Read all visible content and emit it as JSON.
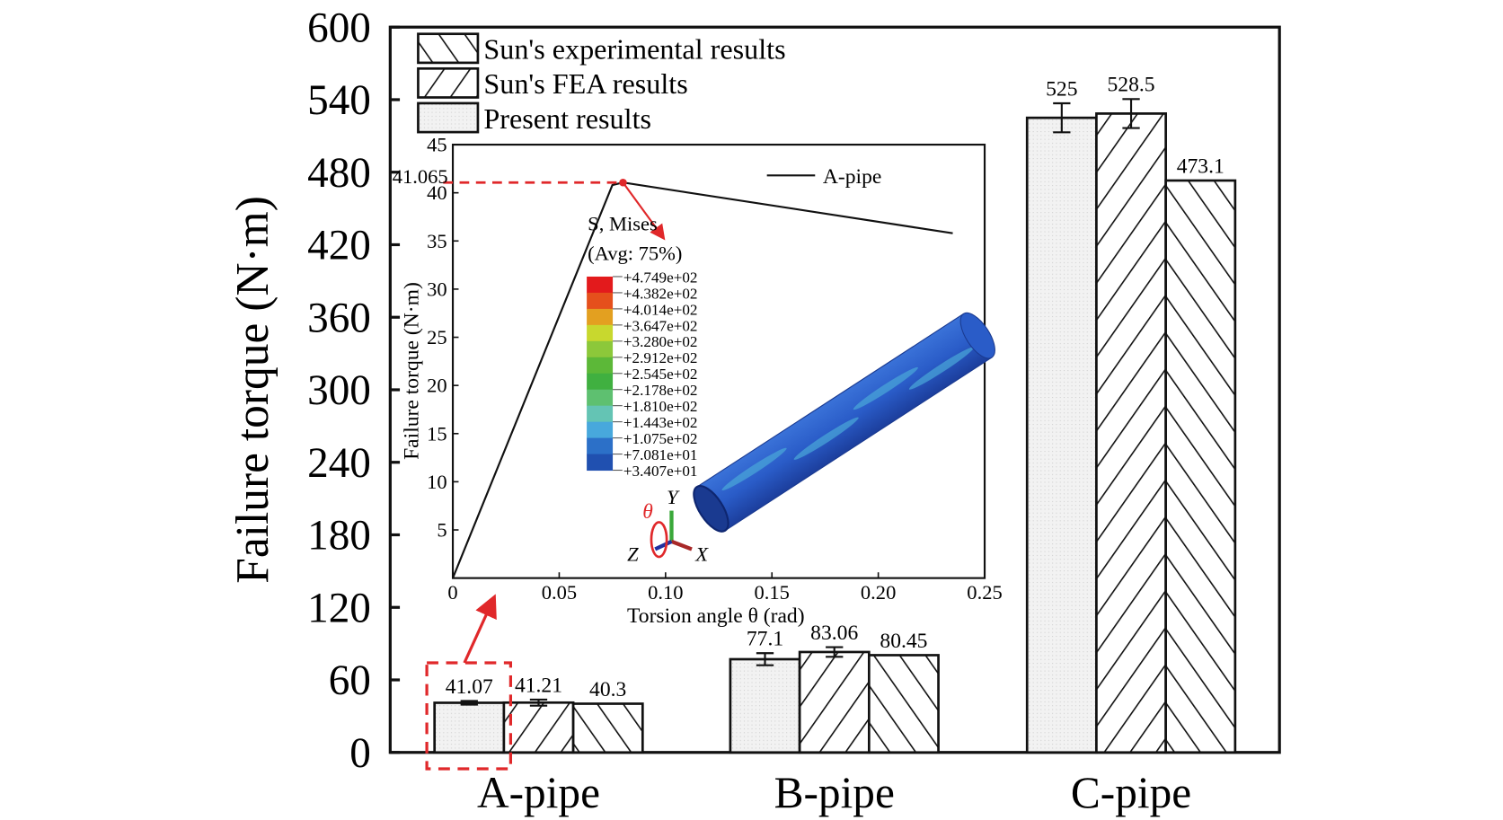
{
  "chart_data": [
    {
      "type": "bar",
      "title": "",
      "xlabel": "",
      "ylabel": "Failure torque (N·m)",
      "ylim": [
        0,
        600
      ],
      "yticks": [
        "0",
        "60",
        "120",
        "180",
        "240",
        "300",
        "360",
        "420",
        "480",
        "540",
        "600"
      ],
      "categories": [
        "A-pipe",
        "B-pipe",
        "C-pipe"
      ],
      "legend_position": "top-left",
      "series": [
        {
          "name": "Present results",
          "pattern": "dots",
          "values": [
            41.07,
            77.1,
            525
          ],
          "labels": [
            "41.07",
            "77.1",
            "525"
          ],
          "errors": [
            1.5,
            5,
            12
          ]
        },
        {
          "name": "Sun's FEA results",
          "pattern": "forward-hatch",
          "values": [
            41.21,
            83.06,
            528.5
          ],
          "labels": [
            "41.21",
            "83.06",
            "528.5"
          ],
          "errors": [
            2.5,
            4,
            12
          ]
        },
        {
          "name": "Sun's experimental results",
          "pattern": "back-hatch",
          "values": [
            40.3,
            80.45,
            473.1
          ],
          "labels": [
            "40.3",
            "80.45",
            "473.1"
          ],
          "errors": [
            0,
            0,
            0
          ]
        }
      ],
      "legend_order": [
        "Sun's experimental results",
        "Sun's FEA results",
        "Present results"
      ]
    },
    {
      "type": "line",
      "xlabel": "Torsion angle θ (rad)",
      "ylabel": "Failure torque (N·m)",
      "xlim": [
        0,
        0.25
      ],
      "ylim": [
        0,
        45
      ],
      "xticks": [
        "0",
        "0.05",
        "0.10",
        "0.15",
        "0.20",
        "0.25"
      ],
      "yticks": [
        "5",
        "10",
        "15",
        "20",
        "25",
        "30",
        "35",
        "40",
        "45"
      ],
      "legend": "A-pipe",
      "legend_position": "top-right",
      "series": [
        {
          "name": "A-pipe",
          "x": [
            0,
            0.075,
            0.08,
            0.235
          ],
          "y": [
            0,
            40.8,
            41.065,
            35.8
          ]
        }
      ],
      "peak_annotation": {
        "label": "41.065",
        "x": 0.08,
        "y": 41.065
      },
      "contour_legend": {
        "title": "S, Mises",
        "subtitle": "(Avg: 75%)",
        "values": [
          "+4.749e+02",
          "+4.382e+02",
          "+4.014e+02",
          "+3.647e+02",
          "+3.280e+02",
          "+2.912e+02",
          "+2.545e+02",
          "+2.178e+02",
          "+1.810e+02",
          "+1.443e+02",
          "+1.075e+02",
          "+7.081e+01",
          "+3.407e+01"
        ],
        "colors": [
          "#e31a1c",
          "#e5501c",
          "#e3a020",
          "#c8d82e",
          "#8cc83a",
          "#5cb838",
          "#40b040",
          "#5ec070",
          "#64c4b4",
          "#48a8dc",
          "#2c70c8",
          "#2050b0",
          "#2848a8"
        ]
      },
      "axis_triad": {
        "rotation": "θ",
        "x": "X",
        "y": "Y",
        "z": "Z"
      }
    }
  ]
}
